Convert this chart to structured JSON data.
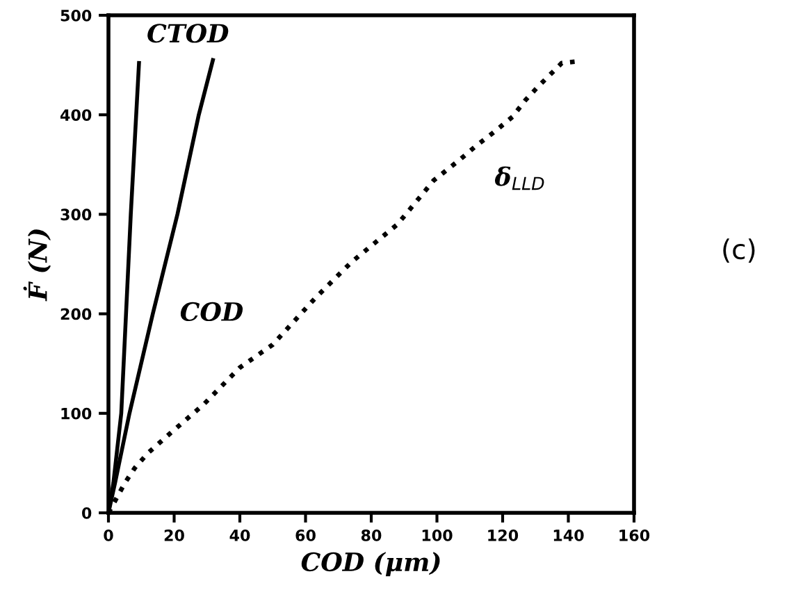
{
  "chart_data": {
    "type": "line",
    "xlabel": "COD (μm)",
    "ylabel": "Ḟ (N)",
    "annotations": [
      "(c)"
    ],
    "xlim": [
      0,
      160
    ],
    "ylim": [
      0,
      500
    ],
    "xticks": [
      0,
      20,
      40,
      60,
      80,
      100,
      120,
      140,
      160
    ],
    "yticks": [
      0,
      100,
      200,
      300,
      400,
      500
    ],
    "grid": false,
    "legend": false,
    "series": [
      {
        "name": "CTOD",
        "color": "#000000",
        "line_style": "solid",
        "x": [
          0,
          1.5,
          3.9,
          6.8,
          9.3
        ],
        "values": [
          0,
          30,
          100,
          300,
          452
        ]
      },
      {
        "name": "COD",
        "color": "#000000",
        "line_style": "solid",
        "x": [
          0,
          2,
          6.4,
          13.5,
          21,
          27.5,
          31.8
        ],
        "values": [
          0,
          30,
          100,
          200,
          300,
          400,
          455
        ]
      },
      {
        "name": "δ$_{LLD}$",
        "color": "#000000",
        "line_style": "dotted",
        "x": [
          0,
          5,
          8,
          12,
          17.8,
          29,
          40,
          50,
          63,
          74,
          88,
          99,
          107,
          112,
          117.5,
          123,
          127,
          131,
          138,
          143.6
        ],
        "values": [
          0,
          30,
          45,
          60,
          77,
          109,
          146,
          169,
          216,
          252,
          290,
          334,
          355,
          369,
          383,
          398,
          415,
          429,
          452,
          454
        ]
      }
    ]
  }
}
